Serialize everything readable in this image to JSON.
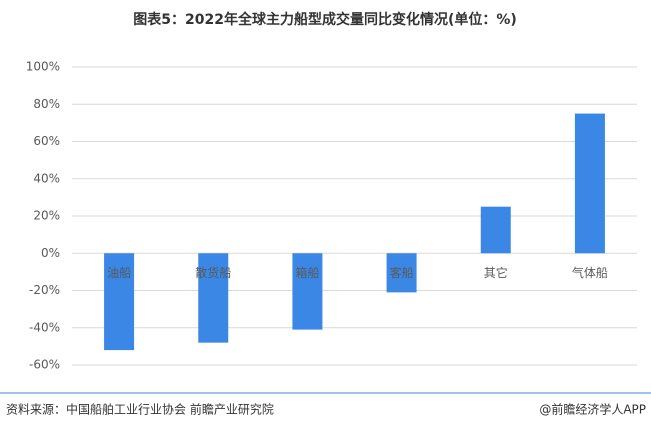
{
  "chart_data": {
    "type": "bar",
    "title": "图表5：2022年全球主力船型成交量同比变化情况(单位：%)",
    "categories": [
      "油船",
      "散货船",
      "箱船",
      "客船",
      "其它",
      "气体船"
    ],
    "values": [
      -52,
      -48,
      -41,
      -21,
      25,
      75
    ],
    "color": "#3a87e6",
    "ylim": [
      -60,
      100
    ],
    "yticks": [
      {
        "value": -60,
        "label": "-60%"
      },
      {
        "value": -40,
        "label": "-40%"
      },
      {
        "value": -20,
        "label": "-20%"
      },
      {
        "value": 0,
        "label": "0%"
      },
      {
        "value": 20,
        "label": "20%"
      },
      {
        "value": 40,
        "label": "40%"
      },
      {
        "value": 60,
        "label": "60%"
      },
      {
        "value": 80,
        "label": "80%"
      },
      {
        "value": 100,
        "label": "100%"
      }
    ],
    "grid": true,
    "source": "资料来源：中国船舶工业行业协会 前瞻产业研究院",
    "credit": "@前瞻经济学人APP"
  }
}
